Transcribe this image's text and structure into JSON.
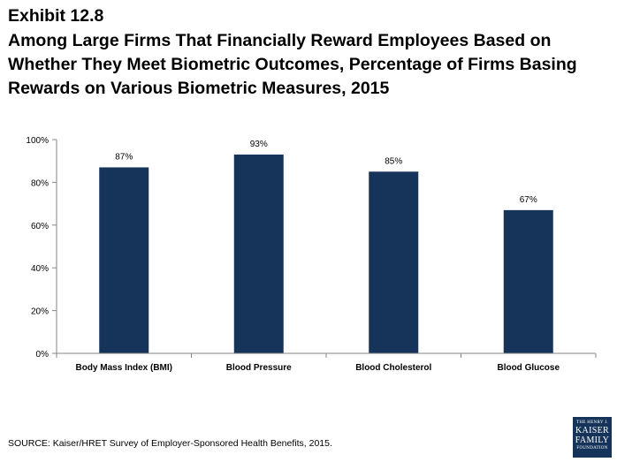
{
  "exhibit": "Exhibit 12.8",
  "title": "Among Large Firms That Financially Reward Employees Based on Whether They Meet Biometric Outcomes, Percentage of Firms Basing Rewards on Various Biometric Measures, 2015",
  "source": "SOURCE: Kaiser/HRET Survey of Employer-Sponsored Health Benefits, 2015.",
  "logo": {
    "line1": "THE HENRY J.",
    "line2": "KAISER",
    "line3": "FAMILY",
    "line4": "FOUNDATION"
  },
  "colors": {
    "bar": "#16345a",
    "axis": "#868686"
  },
  "chart_data": {
    "type": "bar",
    "categories": [
      "Body Mass Index (BMI)",
      "Blood Pressure",
      "Blood Cholesterol",
      "Blood Glucose"
    ],
    "values": [
      87,
      93,
      85,
      67
    ],
    "data_labels": [
      "87%",
      "93%",
      "85%",
      "67%"
    ],
    "y_ticks": [
      "0%",
      "20%",
      "40%",
      "60%",
      "80%",
      "100%"
    ],
    "ylim": [
      0,
      100
    ],
    "grid": false,
    "legend": "none"
  }
}
